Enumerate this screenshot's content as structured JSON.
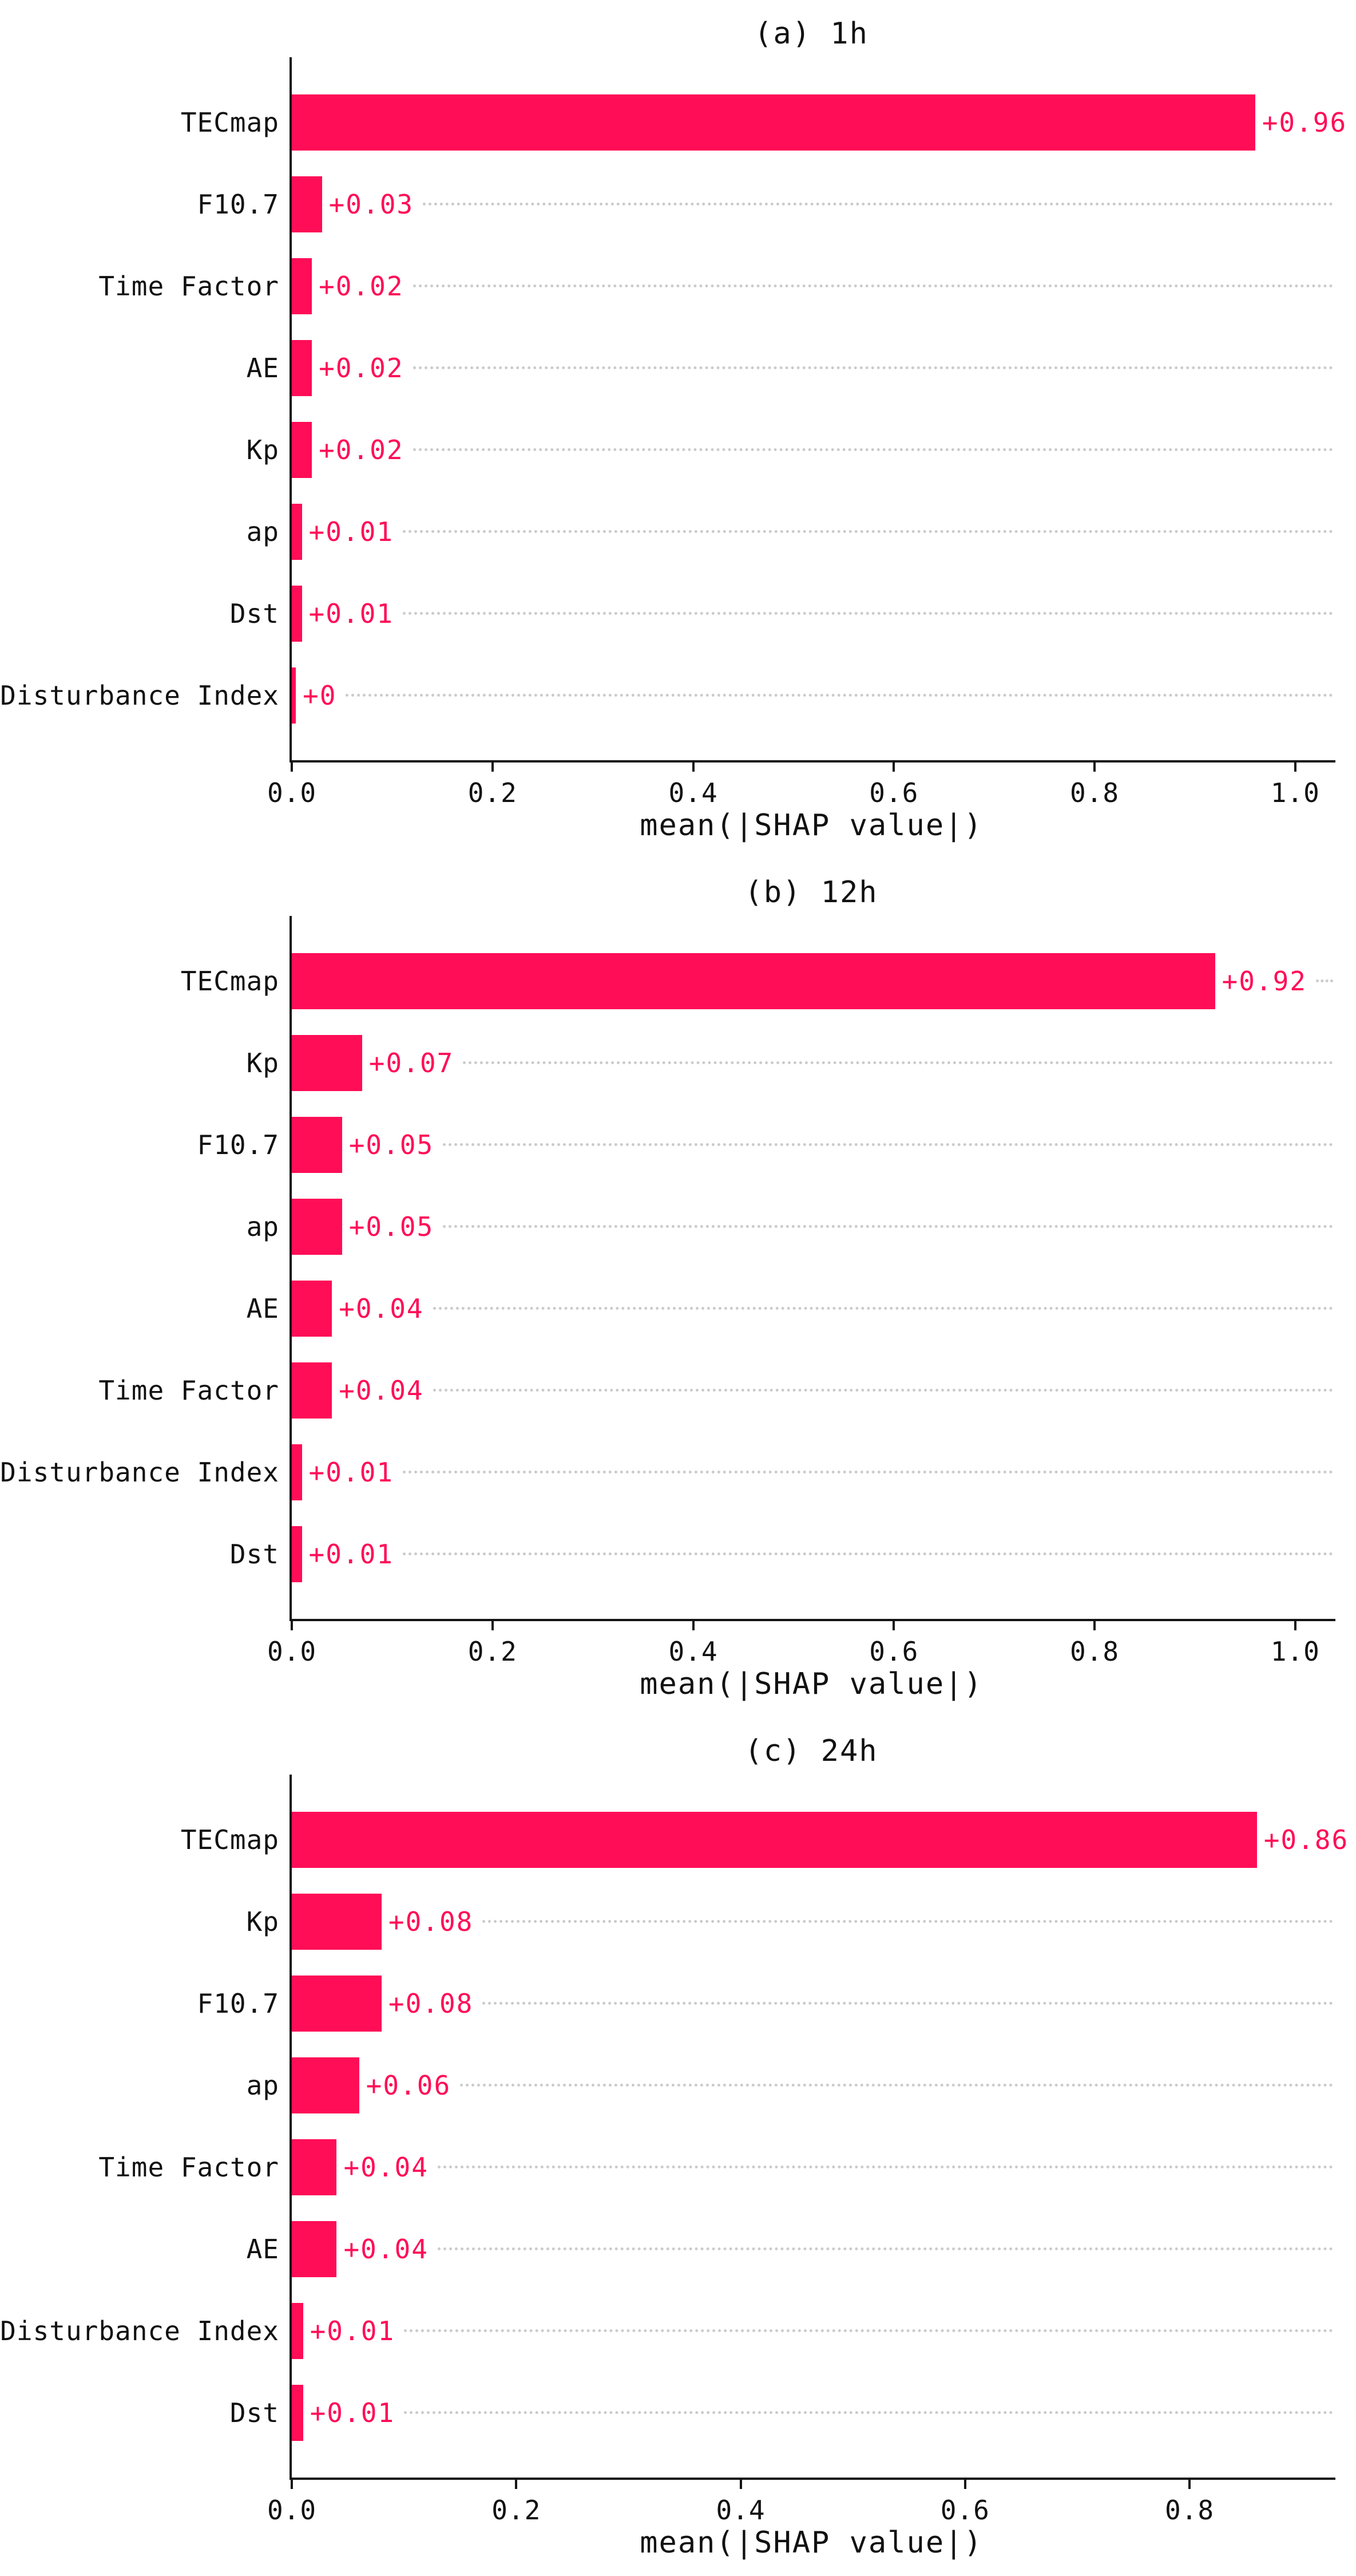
{
  "figure": {
    "background": "#ffffff",
    "description": "Three stacked horizontal bar charts of SHAP feature importance for 1h, 12h and 24h forecasts"
  },
  "colors": {
    "bar": "#ff0d57",
    "value_text": "#ff0d57",
    "axis": "#141414",
    "text": "#111111",
    "leader_dots": "#cbcbcb"
  },
  "chart_data": [
    {
      "type": "bar",
      "orientation": "horizontal",
      "title": "(a) 1h",
      "xlabel": "mean(|SHAP value|)",
      "categories": [
        "TECmap",
        "F10.7",
        "Time Factor",
        "AE",
        "Kp",
        "ap",
        "Dst",
        "Disturbance Index"
      ],
      "values": [
        0.96,
        0.03,
        0.02,
        0.02,
        0.02,
        0.01,
        0.01,
        0.004
      ],
      "value_labels": [
        "+0.96",
        "+0.03",
        "+0.02",
        "+0.02",
        "+0.02",
        "+0.01",
        "+0.01",
        "+0"
      ],
      "xlim": [
        0,
        1.04
      ],
      "xticks": [
        0.0,
        0.2,
        0.4,
        0.6,
        0.8,
        1.0
      ],
      "xtick_labels": [
        "0.0",
        "0.2",
        "0.4",
        "0.6",
        "0.8",
        "1.0"
      ],
      "grid": "dotted horizontal leaders per row",
      "legend": "none"
    },
    {
      "type": "bar",
      "orientation": "horizontal",
      "title": "(b) 12h",
      "xlabel": "mean(|SHAP value|)",
      "categories": [
        "TECmap",
        "Kp",
        "F10.7",
        "ap",
        "AE",
        "Time Factor",
        "Disturbance Index",
        "Dst"
      ],
      "values": [
        0.92,
        0.07,
        0.05,
        0.05,
        0.04,
        0.04,
        0.01,
        0.01
      ],
      "value_labels": [
        "+0.92",
        "+0.07",
        "+0.05",
        "+0.05",
        "+0.04",
        "+0.04",
        "+0.01",
        "+0.01"
      ],
      "xlim": [
        0,
        1.04
      ],
      "xticks": [
        0.0,
        0.2,
        0.4,
        0.6,
        0.8,
        1.0
      ],
      "xtick_labels": [
        "0.0",
        "0.2",
        "0.4",
        "0.6",
        "0.8",
        "1.0"
      ],
      "grid": "dotted horizontal leaders per row",
      "legend": "none"
    },
    {
      "type": "bar",
      "orientation": "horizontal",
      "title": "(c) 24h",
      "xlabel": "mean(|SHAP value|)",
      "categories": [
        "TECmap",
        "Kp",
        "F10.7",
        "ap",
        "Time Factor",
        "AE",
        "Disturbance Index",
        "Dst"
      ],
      "values": [
        0.86,
        0.08,
        0.08,
        0.06,
        0.04,
        0.04,
        0.01,
        0.01
      ],
      "value_labels": [
        "+0.86",
        "+0.08",
        "+0.08",
        "+0.06",
        "+0.04",
        "+0.04",
        "+0.01",
        "+0.01"
      ],
      "xlim": [
        0,
        0.93
      ],
      "xticks": [
        0.0,
        0.2,
        0.4,
        0.6,
        0.8
      ],
      "xtick_labels": [
        "0.0",
        "0.2",
        "0.4",
        "0.6",
        "0.8"
      ],
      "grid": "dotted horizontal leaders per row",
      "legend": "none"
    }
  ]
}
